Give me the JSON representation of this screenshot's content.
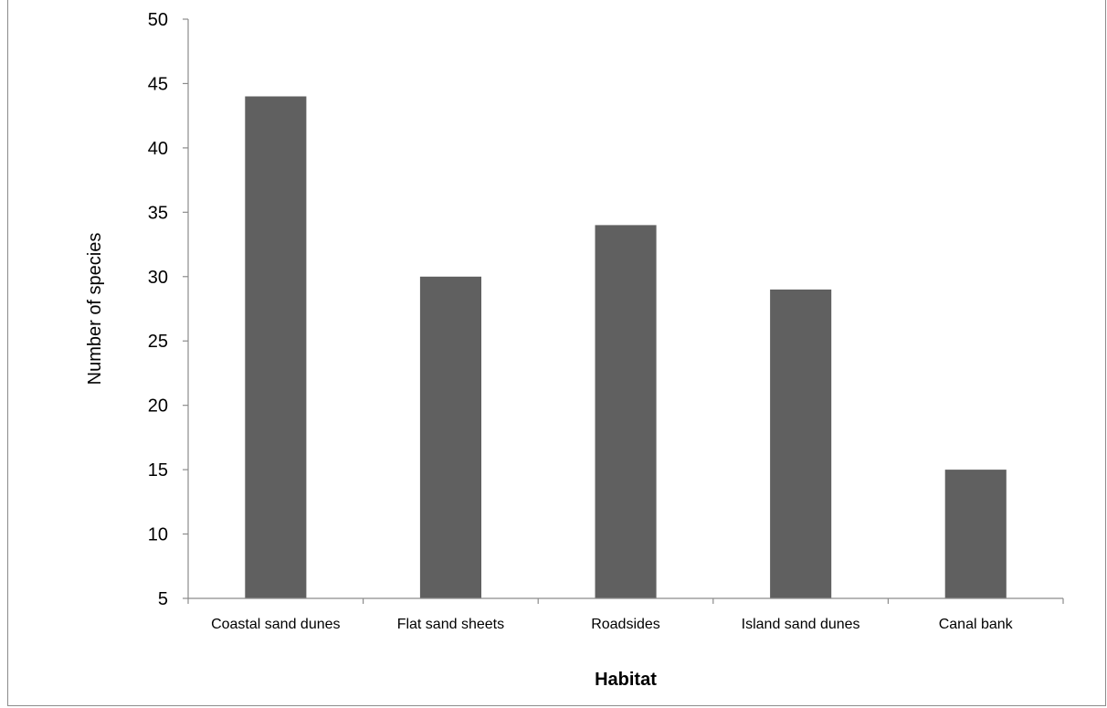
{
  "chart_data": {
    "type": "bar",
    "categories": [
      "Coastal sand dunes",
      "Flat sand sheets",
      "Roadsides",
      "Island sand dunes",
      "Canal bank"
    ],
    "values": [
      44,
      30,
      34,
      29,
      15
    ],
    "title": "",
    "xlabel": "Habitat",
    "ylabel": "Number of species",
    "ylim": [
      5,
      50
    ],
    "yticks": [
      5,
      10,
      15,
      20,
      25,
      30,
      35,
      40,
      45,
      50
    ],
    "grid": false,
    "legend": "none",
    "bar_color": "#606060",
    "axis_color": "#8c8c8c"
  }
}
